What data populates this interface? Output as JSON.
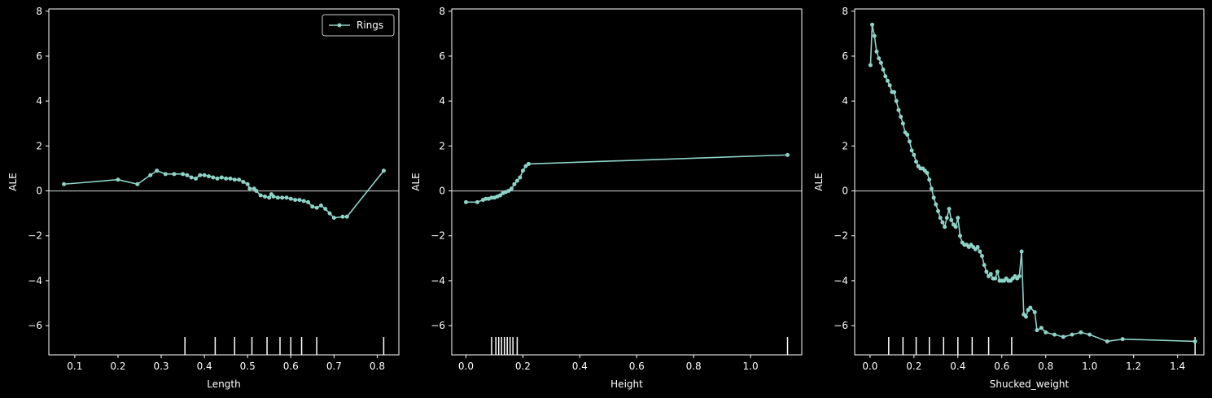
{
  "theme": {
    "background": "#000000",
    "axis_color": "#ffffff",
    "line_color": "#8dd3c7",
    "zero_line_color": "#a0a0a0"
  },
  "chart_data": [
    {
      "type": "line",
      "xlabel": "Length",
      "ylabel": "ALE",
      "xlim": [
        0.04,
        0.85
      ],
      "ylim": [
        -7.3,
        8.1
      ],
      "xticks": [
        "0.1",
        "0.2",
        "0.3",
        "0.4",
        "0.5",
        "0.6",
        "0.7",
        "0.8"
      ],
      "xtick_values": [
        0.1,
        0.2,
        0.3,
        0.4,
        0.5,
        0.6,
        0.7,
        0.8
      ],
      "yticks": [
        "8",
        "6",
        "4",
        "2",
        "0",
        "−2",
        "−4",
        "−6"
      ],
      "ytick_values": [
        8,
        6,
        4,
        2,
        0,
        -2,
        -4,
        -6
      ],
      "legend": {
        "label": "Rings",
        "position": "top-right"
      },
      "deciles": [
        0.355,
        0.425,
        0.47,
        0.51,
        0.545,
        0.575,
        0.6,
        0.625,
        0.66,
        0.815
      ],
      "series": [
        {
          "name": "Rings",
          "points": [
            [
              0.075,
              0.3
            ],
            [
              0.2,
              0.5
            ],
            [
              0.245,
              0.3
            ],
            [
              0.275,
              0.7
            ],
            [
              0.29,
              0.9
            ],
            [
              0.31,
              0.75
            ],
            [
              0.33,
              0.75
            ],
            [
              0.35,
              0.75
            ],
            [
              0.36,
              0.7
            ],
            [
              0.37,
              0.6
            ],
            [
              0.38,
              0.55
            ],
            [
              0.39,
              0.7
            ],
            [
              0.4,
              0.7
            ],
            [
              0.41,
              0.65
            ],
            [
              0.42,
              0.6
            ],
            [
              0.43,
              0.55
            ],
            [
              0.44,
              0.6
            ],
            [
              0.45,
              0.55
            ],
            [
              0.46,
              0.55
            ],
            [
              0.47,
              0.5
            ],
            [
              0.48,
              0.5
            ],
            [
              0.49,
              0.4
            ],
            [
              0.5,
              0.3
            ],
            [
              0.505,
              0.1
            ],
            [
              0.515,
              0.1
            ],
            [
              0.52,
              0.0
            ],
            [
              0.53,
              -0.2
            ],
            [
              0.54,
              -0.25
            ],
            [
              0.55,
              -0.3
            ],
            [
              0.555,
              -0.15
            ],
            [
              0.56,
              -0.25
            ],
            [
              0.57,
              -0.3
            ],
            [
              0.58,
              -0.3
            ],
            [
              0.59,
              -0.3
            ],
            [
              0.6,
              -0.35
            ],
            [
              0.61,
              -0.4
            ],
            [
              0.62,
              -0.4
            ],
            [
              0.63,
              -0.45
            ],
            [
              0.64,
              -0.5
            ],
            [
              0.65,
              -0.7
            ],
            [
              0.66,
              -0.75
            ],
            [
              0.67,
              -0.65
            ],
            [
              0.68,
              -0.8
            ],
            [
              0.69,
              -1.0
            ],
            [
              0.7,
              -1.2
            ],
            [
              0.72,
              -1.15
            ],
            [
              0.73,
              -1.15
            ],
            [
              0.815,
              0.9
            ]
          ]
        }
      ]
    },
    {
      "type": "line",
      "xlabel": "Height",
      "ylabel": "ALE",
      "xlim": [
        -0.05,
        1.18
      ],
      "ylim": [
        -7.3,
        8.1
      ],
      "xticks": [
        "0.0",
        "0.2",
        "0.4",
        "0.6",
        "0.8",
        "1.0"
      ],
      "xtick_values": [
        0.0,
        0.2,
        0.4,
        0.6,
        0.8,
        1.0
      ],
      "yticks": [
        "8",
        "6",
        "4",
        "2",
        "0",
        "−2",
        "−4",
        "−6"
      ],
      "ytick_values": [
        8,
        6,
        4,
        2,
        0,
        -2,
        -4,
        -6
      ],
      "deciles": [
        0.09,
        0.105,
        0.115,
        0.125,
        0.135,
        0.145,
        0.155,
        0.165,
        0.18,
        1.13
      ],
      "series": [
        {
          "name": "Rings",
          "points": [
            [
              0.0,
              -0.5
            ],
            [
              0.04,
              -0.5
            ],
            [
              0.06,
              -0.4
            ],
            [
              0.07,
              -0.35
            ],
            [
              0.08,
              -0.35
            ],
            [
              0.09,
              -0.3
            ],
            [
              0.1,
              -0.3
            ],
            [
              0.11,
              -0.25
            ],
            [
              0.12,
              -0.2
            ],
            [
              0.13,
              -0.1
            ],
            [
              0.14,
              -0.05
            ],
            [
              0.15,
              0.0
            ],
            [
              0.16,
              0.1
            ],
            [
              0.17,
              0.3
            ],
            [
              0.18,
              0.45
            ],
            [
              0.19,
              0.6
            ],
            [
              0.2,
              0.9
            ],
            [
              0.21,
              1.1
            ],
            [
              0.22,
              1.2
            ],
            [
              1.13,
              1.6
            ]
          ]
        }
      ]
    },
    {
      "type": "line",
      "xlabel": "Shucked_weight",
      "ylabel": "ALE",
      "xlim": [
        -0.07,
        1.52
      ],
      "ylim": [
        -7.3,
        8.1
      ],
      "xticks": [
        "0.0",
        "0.2",
        "0.4",
        "0.6",
        "0.8",
        "1.0",
        "1.2",
        "1.4"
      ],
      "xtick_values": [
        0.0,
        0.2,
        0.4,
        0.6,
        0.8,
        1.0,
        1.2,
        1.4
      ],
      "yticks": [
        "8",
        "6",
        "4",
        "2",
        "0",
        "−2",
        "−4",
        "−6"
      ],
      "ytick_values": [
        8,
        6,
        4,
        2,
        0,
        -2,
        -4,
        -6
      ],
      "deciles": [
        0.085,
        0.15,
        0.21,
        0.27,
        0.335,
        0.4,
        0.465,
        0.54,
        0.645,
        1.48
      ],
      "series": [
        {
          "name": "Rings",
          "points": [
            [
              0.002,
              5.6
            ],
            [
              0.01,
              7.4
            ],
            [
              0.02,
              6.9
            ],
            [
              0.03,
              6.2
            ],
            [
              0.04,
              5.9
            ],
            [
              0.05,
              5.7
            ],
            [
              0.06,
              5.4
            ],
            [
              0.07,
              5.1
            ],
            [
              0.08,
              4.9
            ],
            [
              0.09,
              4.7
            ],
            [
              0.1,
              4.4
            ],
            [
              0.11,
              4.4
            ],
            [
              0.12,
              4.0
            ],
            [
              0.13,
              3.6
            ],
            [
              0.14,
              3.3
            ],
            [
              0.15,
              3.0
            ],
            [
              0.16,
              2.6
            ],
            [
              0.17,
              2.5
            ],
            [
              0.18,
              2.2
            ],
            [
              0.19,
              1.8
            ],
            [
              0.2,
              1.6
            ],
            [
              0.21,
              1.3
            ],
            [
              0.22,
              1.1
            ],
            [
              0.23,
              1.0
            ],
            [
              0.24,
              1.0
            ],
            [
              0.25,
              0.9
            ],
            [
              0.26,
              0.8
            ],
            [
              0.27,
              0.5
            ],
            [
              0.28,
              0.1
            ],
            [
              0.29,
              -0.3
            ],
            [
              0.3,
              -0.6
            ],
            [
              0.31,
              -0.9
            ],
            [
              0.32,
              -1.2
            ],
            [
              0.33,
              -1.4
            ],
            [
              0.34,
              -1.6
            ],
            [
              0.35,
              -1.2
            ],
            [
              0.36,
              -0.8
            ],
            [
              0.37,
              -1.3
            ],
            [
              0.38,
              -1.5
            ],
            [
              0.39,
              -1.6
            ],
            [
              0.4,
              -1.2
            ],
            [
              0.41,
              -2.0
            ],
            [
              0.42,
              -2.3
            ],
            [
              0.43,
              -2.4
            ],
            [
              0.44,
              -2.4
            ],
            [
              0.45,
              -2.5
            ],
            [
              0.46,
              -2.4
            ],
            [
              0.47,
              -2.5
            ],
            [
              0.48,
              -2.6
            ],
            [
              0.49,
              -2.5
            ],
            [
              0.5,
              -2.7
            ],
            [
              0.51,
              -2.9
            ],
            [
              0.52,
              -3.3
            ],
            [
              0.53,
              -3.6
            ],
            [
              0.54,
              -3.8
            ],
            [
              0.55,
              -3.7
            ],
            [
              0.56,
              -3.9
            ],
            [
              0.57,
              -3.9
            ],
            [
              0.58,
              -3.6
            ],
            [
              0.59,
              -4.0
            ],
            [
              0.6,
              -4.0
            ],
            [
              0.61,
              -4.0
            ],
            [
              0.62,
              -3.9
            ],
            [
              0.63,
              -4.0
            ],
            [
              0.64,
              -4.0
            ],
            [
              0.65,
              -3.9
            ],
            [
              0.66,
              -3.8
            ],
            [
              0.67,
              -3.9
            ],
            [
              0.68,
              -3.8
            ],
            [
              0.69,
              -2.7
            ],
            [
              0.7,
              -5.5
            ],
            [
              0.71,
              -5.6
            ],
            [
              0.72,
              -5.3
            ],
            [
              0.73,
              -5.2
            ],
            [
              0.75,
              -5.4
            ],
            [
              0.76,
              -6.2
            ],
            [
              0.78,
              -6.1
            ],
            [
              0.8,
              -6.3
            ],
            [
              0.84,
              -6.4
            ],
            [
              0.88,
              -6.5
            ],
            [
              0.92,
              -6.4
            ],
            [
              0.96,
              -6.3
            ],
            [
              1.0,
              -6.4
            ],
            [
              1.08,
              -6.7
            ],
            [
              1.15,
              -6.6
            ],
            [
              1.48,
              -6.7
            ]
          ]
        }
      ]
    }
  ]
}
